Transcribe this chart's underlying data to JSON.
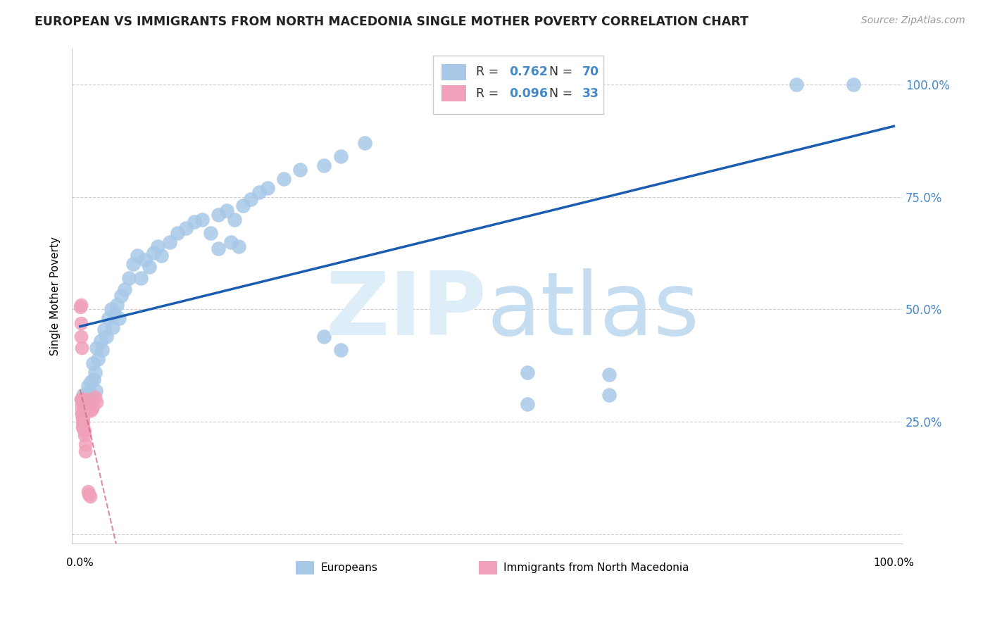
{
  "title": "EUROPEAN VS IMMIGRANTS FROM NORTH MACEDONIA SINGLE MOTHER POVERTY CORRELATION CHART",
  "source": "Source: ZipAtlas.com",
  "ylabel": "Single Mother Poverty",
  "blue_R": 0.762,
  "blue_N": 70,
  "pink_R": 0.096,
  "pink_N": 33,
  "blue_color": "#a8c8e8",
  "pink_color": "#f0a0b8",
  "blue_line_color": "#1a5cb0",
  "pink_line_color": "#d06878",
  "ytick_vals": [
    0.0,
    0.25,
    0.5,
    0.75,
    1.0
  ],
  "ytick_labels_right": [
    "",
    "25.0%",
    "50.0%",
    "75.0%",
    "100.0%"
  ],
  "blue_x": [
    0.002,
    0.003,
    0.004,
    0.005,
    0.006,
    0.007,
    0.008,
    0.009,
    0.01,
    0.011,
    0.012,
    0.013,
    0.014,
    0.015,
    0.016,
    0.017,
    0.018,
    0.019,
    0.02,
    0.022,
    0.025,
    0.027,
    0.03,
    0.032,
    0.035,
    0.038,
    0.04,
    0.042,
    0.045,
    0.048,
    0.05,
    0.055,
    0.06,
    0.065,
    0.07,
    0.075,
    0.08,
    0.085,
    0.09,
    0.095,
    0.1,
    0.11,
    0.12,
    0.13,
    0.14,
    0.15,
    0.16,
    0.17,
    0.18,
    0.19,
    0.2,
    0.21,
    0.22,
    0.23,
    0.25,
    0.27,
    0.3,
    0.32,
    0.35,
    0.17,
    0.185,
    0.195,
    0.3,
    0.32,
    0.55,
    0.65,
    0.55,
    0.65,
    0.88,
    0.95
  ],
  "blue_y": [
    0.3,
    0.29,
    0.31,
    0.285,
    0.295,
    0.28,
    0.305,
    0.275,
    0.33,
    0.315,
    0.295,
    0.34,
    0.31,
    0.285,
    0.38,
    0.345,
    0.36,
    0.32,
    0.415,
    0.39,
    0.43,
    0.41,
    0.455,
    0.44,
    0.48,
    0.5,
    0.46,
    0.49,
    0.51,
    0.48,
    0.53,
    0.545,
    0.57,
    0.6,
    0.62,
    0.57,
    0.61,
    0.595,
    0.625,
    0.64,
    0.62,
    0.65,
    0.67,
    0.68,
    0.695,
    0.7,
    0.67,
    0.71,
    0.72,
    0.7,
    0.73,
    0.745,
    0.76,
    0.77,
    0.79,
    0.81,
    0.82,
    0.84,
    0.87,
    0.635,
    0.65,
    0.64,
    0.44,
    0.41,
    0.36,
    0.31,
    0.29,
    0.355,
    1.0,
    1.0
  ],
  "pink_x": [
    0.0005,
    0.001,
    0.001,
    0.001,
    0.0015,
    0.002,
    0.002,
    0.002,
    0.002,
    0.003,
    0.003,
    0.003,
    0.004,
    0.004,
    0.004,
    0.005,
    0.005,
    0.006,
    0.006,
    0.007,
    0.008,
    0.009,
    0.01,
    0.011,
    0.012,
    0.013,
    0.015,
    0.018,
    0.02,
    0.001,
    0.002,
    0.003,
    0.004
  ],
  "pink_y": [
    0.505,
    0.51,
    0.47,
    0.44,
    0.415,
    0.29,
    0.28,
    0.27,
    0.3,
    0.26,
    0.25,
    0.24,
    0.25,
    0.235,
    0.26,
    0.23,
    0.22,
    0.2,
    0.185,
    0.275,
    0.3,
    0.285,
    0.095,
    0.09,
    0.085,
    0.275,
    0.28,
    0.305,
    0.295,
    0.3,
    0.27,
    0.26,
    0.24
  ]
}
